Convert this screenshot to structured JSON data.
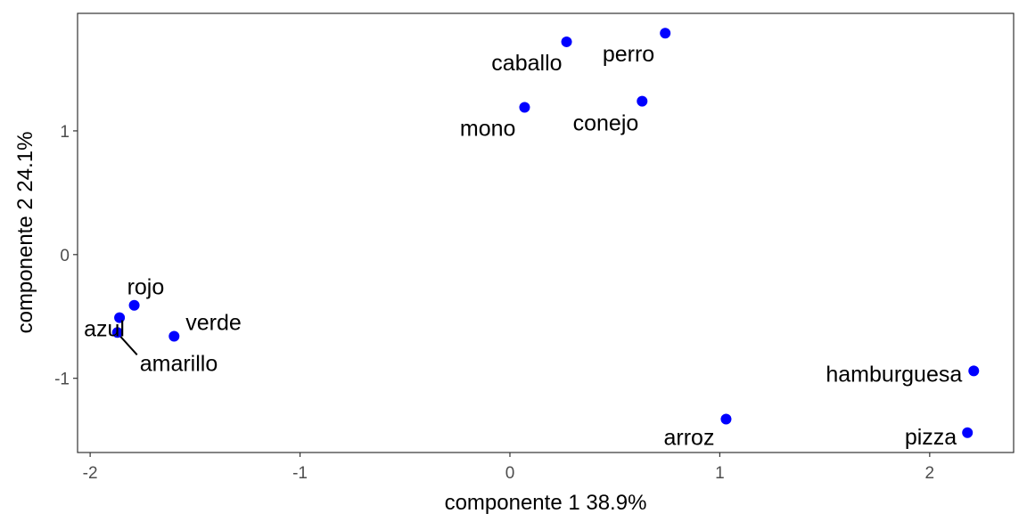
{
  "chart_data": {
    "type": "scatter",
    "xlabel": "componente 1   38.9%",
    "ylabel": "componente 2   24.1%",
    "xlim": [
      -2.06,
      2.4
    ],
    "ylim": [
      -1.6,
      1.95
    ],
    "x_ticks": [
      -2,
      -1,
      0,
      1,
      2
    ],
    "y_ticks": [
      -1,
      0,
      1
    ],
    "x_tick_labels": [
      "-2",
      "-1",
      "0",
      "1",
      "2"
    ],
    "y_tick_labels": [
      "-1",
      "0",
      "1"
    ],
    "grid": false,
    "legend": "none",
    "point_color": "#0000ff",
    "points": [
      {
        "label": "caballo",
        "x": 0.27,
        "y": 1.72
      },
      {
        "label": "perro",
        "x": 0.74,
        "y": 1.79
      },
      {
        "label": "mono",
        "x": 0.07,
        "y": 1.19
      },
      {
        "label": "conejo",
        "x": 0.63,
        "y": 1.24
      },
      {
        "label": "rojo",
        "x": -1.79,
        "y": -0.41
      },
      {
        "label": "azul",
        "x": -1.86,
        "y": -0.51
      },
      {
        "label": "verde",
        "x": -1.6,
        "y": -0.66
      },
      {
        "label": "amarillo",
        "x": -1.87,
        "y": -0.63
      },
      {
        "label": "hamburguesa",
        "x": 2.21,
        "y": -0.94
      },
      {
        "label": "arroz",
        "x": 1.03,
        "y": -1.33
      },
      {
        "label": "pizza",
        "x": 2.18,
        "y": -1.44
      }
    ]
  }
}
